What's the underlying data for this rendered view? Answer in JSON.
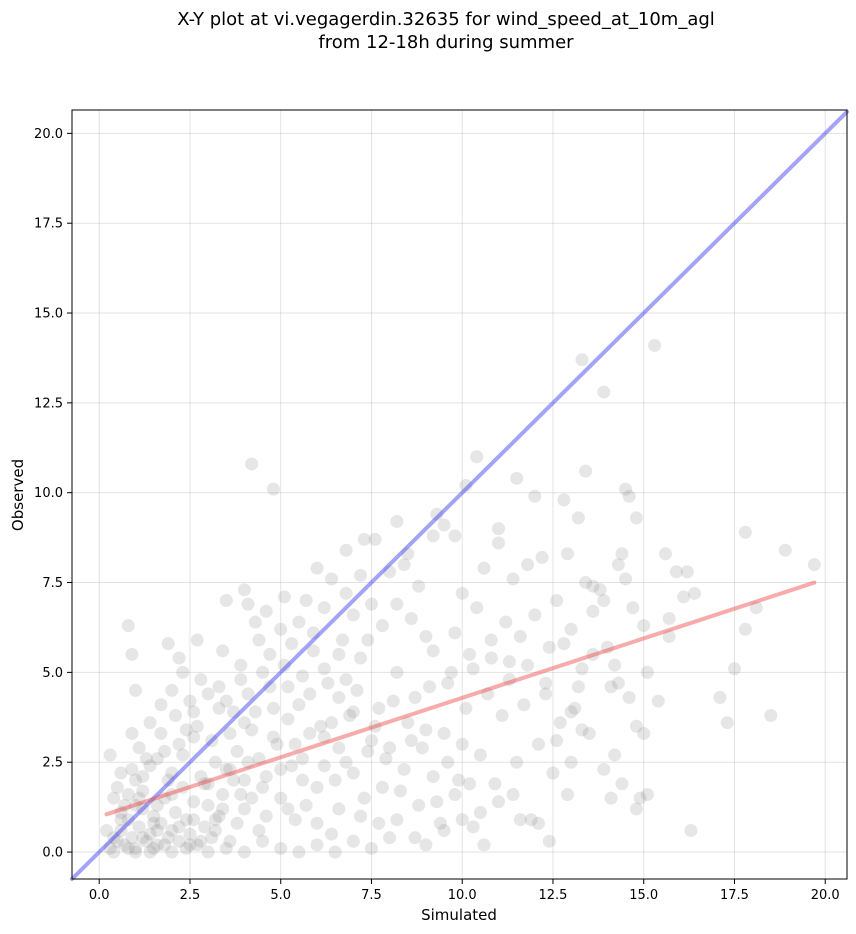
{
  "chart_data": {
    "type": "scatter",
    "title": [
      "X-Y plot at vi.vegagerdin.32635 for wind_speed_at_10m_agl",
      "from 12-18h during summer"
    ],
    "xlabel": "Simulated",
    "ylabel": "Observed",
    "xlim": [
      -0.75,
      20.6
    ],
    "ylim": [
      -0.75,
      20.65
    ],
    "xticks": [
      0.0,
      2.5,
      5.0,
      7.5,
      10.0,
      12.5,
      15.0,
      17.5,
      20.0
    ],
    "xtick_labels": [
      "0.0",
      "2.5",
      "5.0",
      "7.5",
      "10.0",
      "12.5",
      "15.0",
      "17.5",
      "20.0"
    ],
    "yticks": [
      0.0,
      2.5,
      5.0,
      7.5,
      10.0,
      12.5,
      15.0,
      17.5,
      20.0
    ],
    "ytick_labels": [
      "0.0",
      "2.5",
      "5.0",
      "7.5",
      "10.0",
      "12.5",
      "15.0",
      "17.5",
      "20.0"
    ],
    "grid": true,
    "point_color": "#808080",
    "identity_line": {
      "x": [
        -0.75,
        20.6
      ],
      "y": [
        -0.75,
        20.6
      ],
      "color": "#3333ee"
    },
    "fit_line": {
      "x": [
        0.2,
        19.7
      ],
      "y": [
        1.05,
        7.5
      ],
      "color": "#ee4444"
    },
    "points": [
      [
        0.3,
        0.1
      ],
      [
        0.5,
        0.3
      ],
      [
        0.6,
        0.6
      ],
      [
        0.7,
        0.2
      ],
      [
        0.8,
        0.9
      ],
      [
        0.9,
        0.4
      ],
      [
        1.0,
        0.1
      ],
      [
        1.1,
        0.7
      ],
      [
        1.2,
        1.2
      ],
      [
        1.3,
        0.3
      ],
      [
        1.4,
        0.5
      ],
      [
        1.5,
        1.0
      ],
      [
        1.6,
        0.2
      ],
      [
        1.7,
        0.8
      ],
      [
        1.8,
        1.5
      ],
      [
        1.9,
        0.4
      ],
      [
        2.0,
        0.6
      ],
      [
        2.1,
        1.1
      ],
      [
        2.2,
        0.3
      ],
      [
        2.3,
        1.8
      ],
      [
        2.4,
        0.9
      ],
      [
        2.5,
        0.5
      ],
      [
        2.6,
        1.4
      ],
      [
        2.7,
        0.2
      ],
      [
        2.8,
        2.1
      ],
      [
        2.9,
        0.7
      ],
      [
        3.0,
        1.3
      ],
      [
        3.1,
        0.4
      ],
      [
        3.2,
        2.5
      ],
      [
        3.3,
        1.0
      ],
      [
        0.4,
        1.5
      ],
      [
        0.6,
        1.1
      ],
      [
        0.8,
        1.6
      ],
      [
        1.0,
        2.0
      ],
      [
        1.2,
        1.7
      ],
      [
        1.4,
        2.4
      ],
      [
        1.6,
        1.3
      ],
      [
        1.8,
        2.8
      ],
      [
        2.0,
        2.2
      ],
      [
        2.2,
        3.0
      ],
      [
        0.2,
        0.6
      ],
      [
        0.4,
        0.0
      ],
      [
        0.7,
        1.3
      ],
      [
        0.9,
        2.3
      ],
      [
        1.1,
        1.5
      ],
      [
        1.3,
        2.6
      ],
      [
        1.5,
        0.8
      ],
      [
        1.7,
        3.3
      ],
      [
        1.9,
        2.0
      ],
      [
        2.1,
        3.8
      ],
      [
        2.3,
        2.7
      ],
      [
        2.5,
        4.2
      ],
      [
        2.7,
        3.5
      ],
      [
        2.9,
        1.9
      ],
      [
        3.1,
        3.1
      ],
      [
        3.3,
        4.6
      ],
      [
        3.5,
        2.3
      ],
      [
        3.7,
        3.9
      ],
      [
        3.9,
        1.6
      ],
      [
        4.1,
        4.4
      ],
      [
        0.3,
        2.7
      ],
      [
        0.6,
        2.2
      ],
      [
        0.9,
        3.3
      ],
      [
        1.1,
        2.9
      ],
      [
        1.4,
        3.6
      ],
      [
        1.7,
        4.1
      ],
      [
        2.0,
        4.5
      ],
      [
        2.3,
        5.0
      ],
      [
        2.6,
        3.2
      ],
      [
        2.8,
        4.8
      ],
      [
        0.8,
        6.3
      ],
      [
        0.9,
        5.5
      ],
      [
        1.0,
        4.5
      ],
      [
        1.9,
        5.8
      ],
      [
        2.2,
        5.4
      ],
      [
        2.7,
        5.9
      ],
      [
        3.4,
        5.6
      ],
      [
        3.5,
        7.0
      ],
      [
        3.9,
        5.2
      ],
      [
        4.0,
        7.3
      ],
      [
        4.2,
        10.8
      ],
      [
        4.1,
        6.9
      ],
      [
        4.3,
        6.4
      ],
      [
        4.4,
        5.9
      ],
      [
        4.6,
        6.7
      ],
      [
        4.7,
        5.5
      ],
      [
        4.8,
        10.1
      ],
      [
        5.0,
        6.2
      ],
      [
        5.1,
        7.1
      ],
      [
        5.3,
        5.8
      ],
      [
        3.2,
        0.9
      ],
      [
        3.4,
        1.6
      ],
      [
        3.6,
        0.3
      ],
      [
        3.8,
        2.8
      ],
      [
        4.0,
        1.2
      ],
      [
        4.2,
        3.4
      ],
      [
        4.4,
        0.6
      ],
      [
        4.6,
        2.1
      ],
      [
        4.8,
        4.0
      ],
      [
        5.0,
        1.5
      ],
      [
        5.2,
        3.7
      ],
      [
        5.4,
        0.9
      ],
      [
        5.6,
        2.6
      ],
      [
        5.8,
        4.4
      ],
      [
        6.0,
        1.8
      ],
      [
        6.2,
        3.2
      ],
      [
        6.4,
        0.5
      ],
      [
        6.6,
        2.9
      ],
      [
        6.8,
        4.8
      ],
      [
        7.0,
        2.2
      ],
      [
        3.5,
        4.2
      ],
      [
        3.7,
        2.0
      ],
      [
        3.9,
        4.8
      ],
      [
        4.1,
        2.5
      ],
      [
        4.3,
        3.9
      ],
      [
        4.5,
        1.8
      ],
      [
        4.7,
        4.6
      ],
      [
        4.9,
        3.0
      ],
      [
        5.1,
        5.2
      ],
      [
        5.3,
        2.4
      ],
      [
        5.5,
        4.1
      ],
      [
        5.7,
        1.3
      ],
      [
        5.9,
        5.6
      ],
      [
        6.1,
        3.5
      ],
      [
        6.3,
        4.7
      ],
      [
        6.5,
        2.0
      ],
      [
        6.7,
        5.9
      ],
      [
        6.9,
        3.8
      ],
      [
        7.1,
        4.5
      ],
      [
        7.3,
        1.5
      ],
      [
        5.5,
        6.4
      ],
      [
        5.7,
        7.0
      ],
      [
        5.9,
        6.1
      ],
      [
        6.0,
        7.9
      ],
      [
        6.2,
        6.8
      ],
      [
        6.4,
        7.6
      ],
      [
        6.6,
        5.5
      ],
      [
        6.8,
        7.2
      ],
      [
        7.0,
        6.6
      ],
      [
        7.2,
        7.7
      ],
      [
        7.4,
        5.9
      ],
      [
        7.6,
        8.7
      ],
      [
        7.8,
        6.3
      ],
      [
        8.0,
        7.8
      ],
      [
        8.2,
        6.9
      ],
      [
        8.4,
        8.0
      ],
      [
        8.6,
        6.5
      ],
      [
        8.8,
        7.4
      ],
      [
        9.0,
        6.0
      ],
      [
        9.2,
        8.8
      ],
      [
        6.8,
        8.4
      ],
      [
        7.3,
        8.7
      ],
      [
        7.5,
        6.9
      ],
      [
        8.2,
        9.2
      ],
      [
        8.5,
        8.3
      ],
      [
        9.3,
        9.4
      ],
      [
        9.5,
        9.1
      ],
      [
        9.8,
        8.8
      ],
      [
        10.1,
        10.2
      ],
      [
        10.4,
        11.0
      ],
      [
        7.5,
        3.1
      ],
      [
        7.7,
        0.8
      ],
      [
        7.9,
        2.6
      ],
      [
        8.1,
        4.2
      ],
      [
        8.3,
        1.7
      ],
      [
        8.5,
        3.6
      ],
      [
        8.7,
        0.4
      ],
      [
        8.9,
        2.9
      ],
      [
        9.1,
        4.6
      ],
      [
        9.3,
        1.4
      ],
      [
        9.5,
        3.3
      ],
      [
        9.7,
        5.0
      ],
      [
        9.9,
        2.0
      ],
      [
        10.1,
        4.0
      ],
      [
        10.3,
        0.7
      ],
      [
        10.5,
        2.7
      ],
      [
        10.7,
        4.4
      ],
      [
        10.9,
        1.9
      ],
      [
        11.1,
        3.8
      ],
      [
        11.3,
        5.3
      ],
      [
        11.5,
        2.5
      ],
      [
        11.7,
        4.1
      ],
      [
        11.9,
        0.9
      ],
      [
        12.1,
        3.0
      ],
      [
        12.3,
        4.7
      ],
      [
        12.5,
        2.2
      ],
      [
        12.7,
        3.6
      ],
      [
        12.9,
        1.6
      ],
      [
        13.1,
        4.0
      ],
      [
        13.3,
        5.1
      ],
      [
        9.8,
        6.1
      ],
      [
        10.0,
        7.2
      ],
      [
        10.2,
        5.5
      ],
      [
        10.4,
        6.8
      ],
      [
        10.6,
        7.9
      ],
      [
        10.8,
        5.9
      ],
      [
        11.0,
        8.6
      ],
      [
        11.2,
        6.4
      ],
      [
        11.4,
        7.6
      ],
      [
        11.6,
        6.0
      ],
      [
        11.8,
        8.0
      ],
      [
        12.0,
        6.6
      ],
      [
        12.2,
        8.2
      ],
      [
        12.4,
        5.7
      ],
      [
        12.6,
        7.0
      ],
      [
        12.8,
        9.8
      ],
      [
        13.0,
        6.2
      ],
      [
        13.2,
        9.3
      ],
      [
        13.4,
        7.5
      ],
      [
        13.6,
        6.7
      ],
      [
        11.0,
        9.0
      ],
      [
        11.5,
        10.4
      ],
      [
        12.0,
        9.9
      ],
      [
        12.9,
        8.3
      ],
      [
        13.4,
        10.6
      ],
      [
        13.3,
        13.7
      ],
      [
        13.9,
        12.8
      ],
      [
        14.5,
        10.1
      ],
      [
        14.6,
        9.9
      ],
      [
        14.8,
        9.3
      ],
      [
        14.3,
        8.0
      ],
      [
        14.4,
        8.3
      ],
      [
        14.5,
        7.6
      ],
      [
        14.7,
        6.8
      ],
      [
        15.0,
        6.3
      ],
      [
        15.6,
        8.3
      ],
      [
        15.9,
        7.8
      ],
      [
        16.2,
        7.8
      ],
      [
        16.1,
        7.1
      ],
      [
        16.4,
        7.2
      ],
      [
        13.6,
        7.4
      ],
      [
        13.8,
        7.3
      ],
      [
        13.9,
        7.0
      ],
      [
        14.0,
        5.7
      ],
      [
        14.2,
        5.2
      ],
      [
        14.1,
        4.6
      ],
      [
        14.3,
        4.7
      ],
      [
        14.6,
        4.3
      ],
      [
        14.8,
        3.5
      ],
      [
        15.0,
        3.3
      ],
      [
        13.0,
        3.9
      ],
      [
        13.3,
        3.4
      ],
      [
        13.5,
        3.3
      ],
      [
        13.9,
        2.3
      ],
      [
        14.2,
        2.7
      ],
      [
        14.4,
        1.9
      ],
      [
        14.8,
        1.2
      ],
      [
        15.1,
        1.6
      ],
      [
        14.9,
        1.5
      ],
      [
        14.1,
        1.5
      ],
      [
        15.1,
        5.0
      ],
      [
        15.4,
        4.2
      ],
      [
        15.7,
        6.0
      ],
      [
        15.7,
        6.5
      ],
      [
        17.1,
        4.3
      ],
      [
        17.3,
        3.6
      ],
      [
        17.5,
        5.1
      ],
      [
        17.8,
        6.2
      ],
      [
        17.8,
        8.9
      ],
      [
        18.1,
        6.8
      ],
      [
        18.5,
        3.8
      ],
      [
        18.9,
        8.4
      ],
      [
        19.7,
        8.0
      ],
      [
        16.3,
        0.6
      ],
      [
        15.3,
        14.1
      ],
      [
        12.4,
        0.3
      ],
      [
        12.1,
        0.8
      ],
      [
        11.6,
        0.9
      ],
      [
        11.4,
        1.6
      ],
      [
        10.6,
        0.2
      ],
      [
        1.0,
        0.0
      ],
      [
        1.5,
        0.1
      ],
      [
        2.0,
        0.0
      ],
      [
        2.5,
        0.2
      ],
      [
        3.0,
        0.0
      ],
      [
        3.5,
        0.1
      ],
      [
        4.0,
        0.0
      ],
      [
        4.5,
        0.3
      ],
      [
        5.0,
        0.1
      ],
      [
        5.5,
        0.0
      ],
      [
        6.0,
        0.2
      ],
      [
        6.5,
        0.0
      ],
      [
        7.0,
        0.3
      ],
      [
        7.5,
        0.1
      ],
      [
        8.0,
        0.4
      ],
      [
        9.0,
        0.2
      ],
      [
        9.5,
        0.6
      ],
      [
        10.0,
        0.9
      ],
      [
        10.5,
        1.1
      ],
      [
        11.0,
        1.4
      ],
      [
        0.5,
        1.8
      ],
      [
        1.2,
        2.1
      ],
      [
        1.6,
        2.6
      ],
      [
        2.4,
        3.4
      ],
      [
        2.6,
        3.9
      ],
      [
        3.0,
        4.4
      ],
      [
        3.3,
        4.0
      ],
      [
        3.6,
        3.3
      ],
      [
        4.0,
        3.6
      ],
      [
        4.5,
        5.0
      ],
      [
        5.2,
        4.6
      ],
      [
        5.6,
        4.9
      ],
      [
        6.2,
        5.1
      ],
      [
        6.6,
        4.3
      ],
      [
        7.2,
        5.4
      ],
      [
        7.7,
        4.0
      ],
      [
        8.2,
        5.0
      ],
      [
        8.7,
        4.3
      ],
      [
        9.2,
        5.6
      ],
      [
        9.6,
        4.7
      ],
      [
        10.3,
        5.1
      ],
      [
        10.8,
        5.4
      ],
      [
        11.3,
        4.8
      ],
      [
        11.8,
        5.2
      ],
      [
        12.3,
        4.4
      ],
      [
        12.8,
        5.8
      ],
      [
        13.2,
        4.6
      ],
      [
        13.6,
        5.5
      ],
      [
        13.0,
        2.5
      ],
      [
        12.6,
        3.1
      ],
      [
        0.4,
        0.4
      ],
      [
        0.6,
        0.9
      ],
      [
        0.8,
        0.1
      ],
      [
        1.0,
        1.3
      ],
      [
        1.2,
        0.4
      ],
      [
        1.4,
        0.0
      ],
      [
        1.6,
        0.6
      ],
      [
        1.8,
        0.2
      ],
      [
        2.0,
        1.6
      ],
      [
        2.2,
        0.7
      ],
      [
        2.4,
        0.1
      ],
      [
        2.6,
        0.9
      ],
      [
        2.8,
        0.3
      ],
      [
        3.0,
        1.9
      ],
      [
        3.2,
        0.6
      ],
      [
        3.4,
        1.2
      ],
      [
        3.6,
        2.3
      ],
      [
        3.8,
        0.8
      ],
      [
        4.0,
        2.0
      ],
      [
        4.2,
        1.5
      ],
      [
        4.4,
        2.6
      ],
      [
        4.6,
        1.0
      ],
      [
        4.8,
        3.2
      ],
      [
        5.0,
        2.3
      ],
      [
        5.2,
        1.2
      ],
      [
        5.4,
        3.0
      ],
      [
        5.6,
        2.0
      ],
      [
        5.8,
        3.3
      ],
      [
        6.0,
        0.8
      ],
      [
        6.2,
        2.4
      ],
      [
        6.4,
        3.6
      ],
      [
        6.6,
        1.2
      ],
      [
        6.8,
        2.5
      ],
      [
        7.0,
        3.9
      ],
      [
        7.2,
        1.0
      ],
      [
        7.4,
        2.8
      ],
      [
        7.6,
        3.5
      ],
      [
        7.8,
        1.8
      ],
      [
        8.0,
        2.9
      ],
      [
        8.2,
        0.9
      ],
      [
        8.4,
        2.3
      ],
      [
        8.6,
        3.1
      ],
      [
        8.8,
        1.3
      ],
      [
        9.0,
        3.4
      ],
      [
        9.2,
        2.1
      ],
      [
        9.4,
        0.8
      ],
      [
        9.6,
        2.5
      ],
      [
        9.8,
        1.6
      ],
      [
        10.0,
        3.0
      ],
      [
        10.2,
        1.9
      ]
    ]
  }
}
